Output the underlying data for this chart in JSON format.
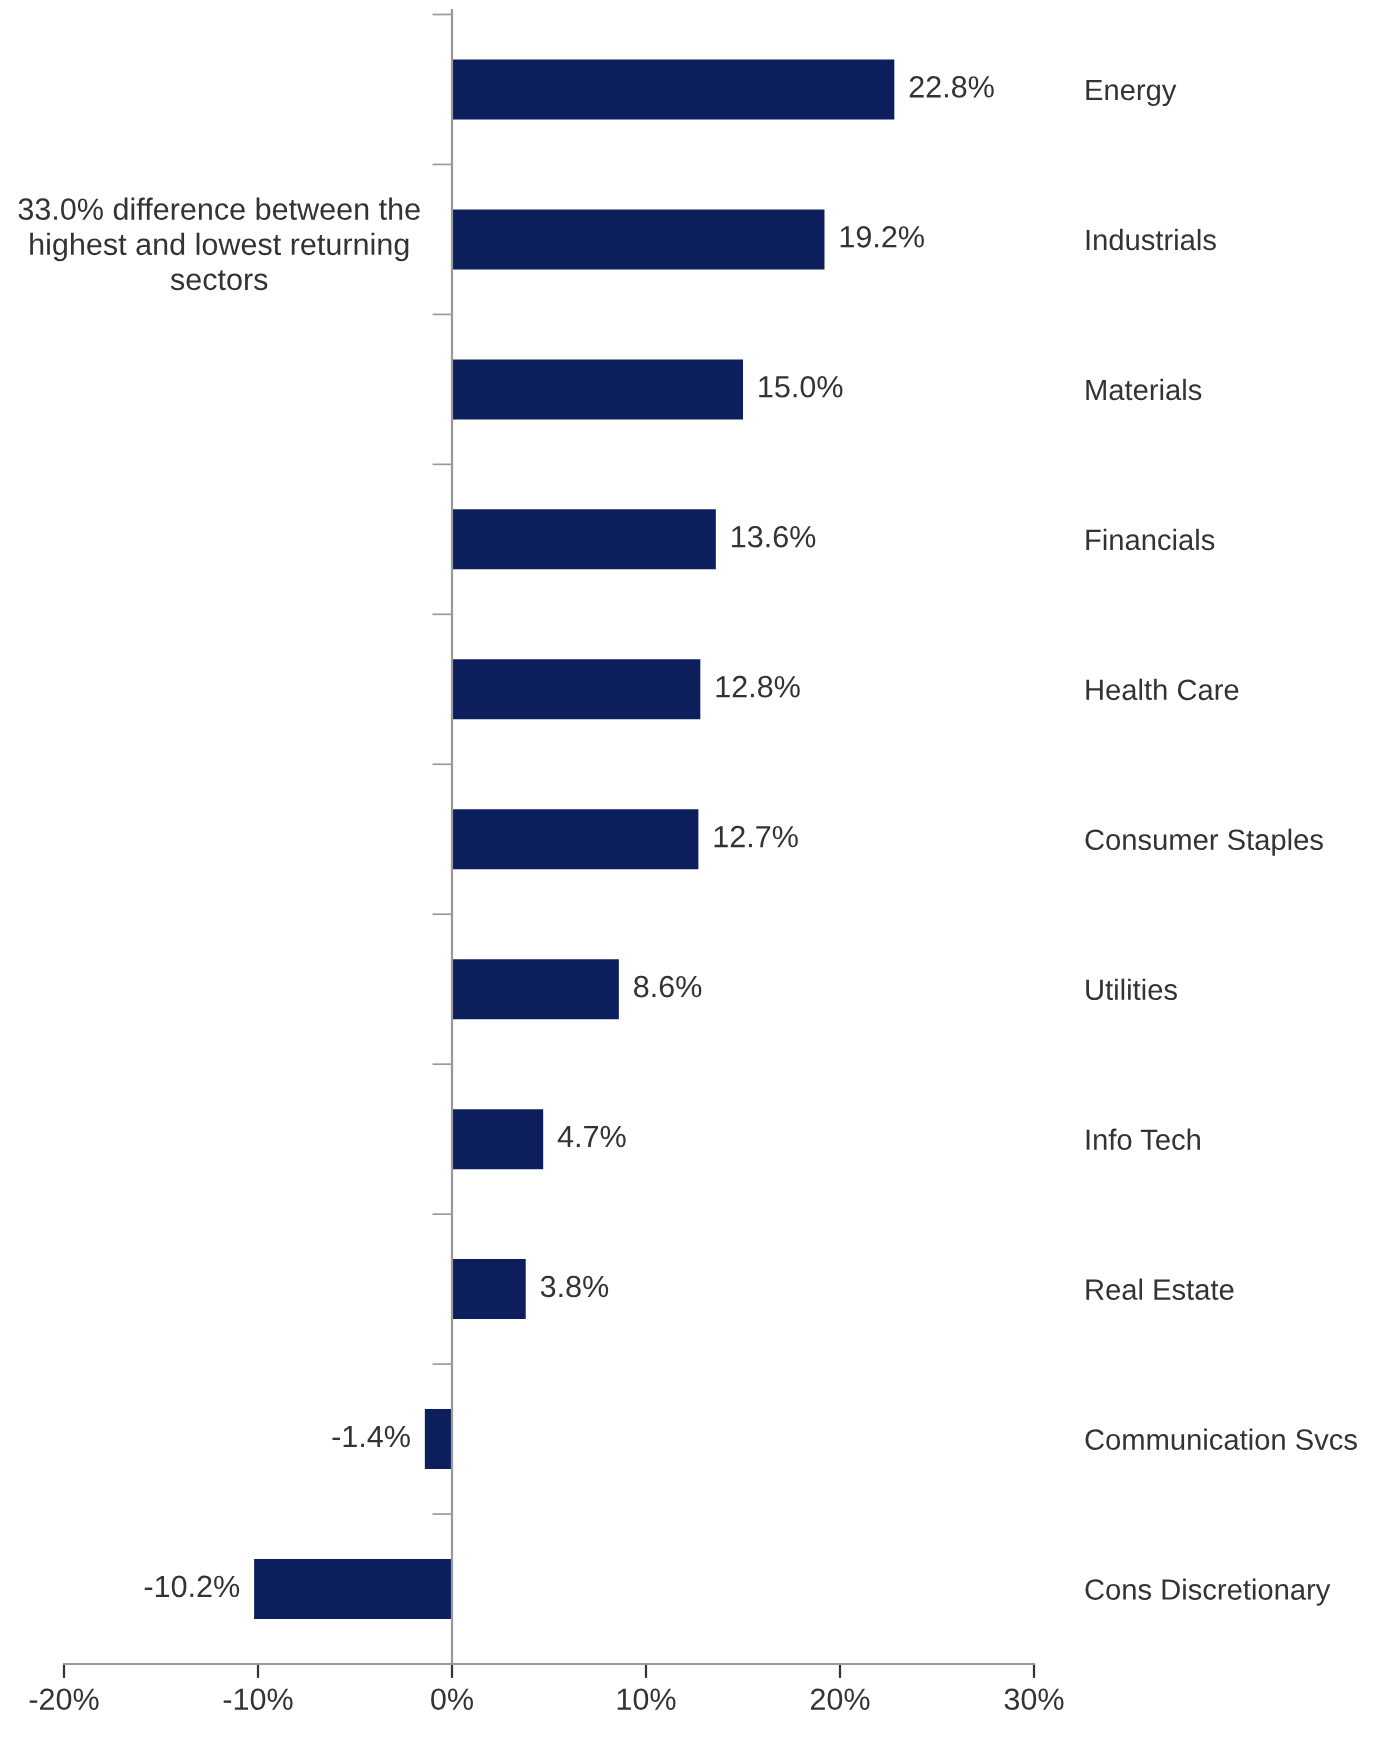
{
  "chart_data": {
    "type": "bar",
    "orientation": "horizontal",
    "categories": [
      "Energy",
      "Industrials",
      "Materials",
      "Financials",
      "Health Care",
      "Consumer Staples",
      "Utilities",
      "Info Tech",
      "Real Estate",
      "Communication Svcs",
      "Cons Discretionary"
    ],
    "values": [
      22.8,
      19.2,
      15.0,
      13.6,
      12.8,
      12.7,
      8.6,
      4.7,
      3.8,
      -1.4,
      -10.2
    ],
    "value_labels": [
      "22.8%",
      "19.2%",
      "15.0%",
      "13.6%",
      "12.8%",
      "12.7%",
      "8.6%",
      "4.7%",
      "3.8%",
      "-1.4%",
      "-10.2%"
    ],
    "color": "#0c1f5c",
    "xlim": [
      -20,
      30
    ],
    "xticks": [
      {
        "value": -20,
        "label": "-20%"
      },
      {
        "value": -10,
        "label": "-10%"
      },
      {
        "value": 0,
        "label": "0%"
      },
      {
        "value": 10,
        "label": "10%"
      },
      {
        "value": 20,
        "label": "20%"
      },
      {
        "value": 30,
        "label": "30%"
      }
    ],
    "annotations": [
      "33.0% difference between the highest and lowest returning sectors"
    ],
    "legend": false
  }
}
